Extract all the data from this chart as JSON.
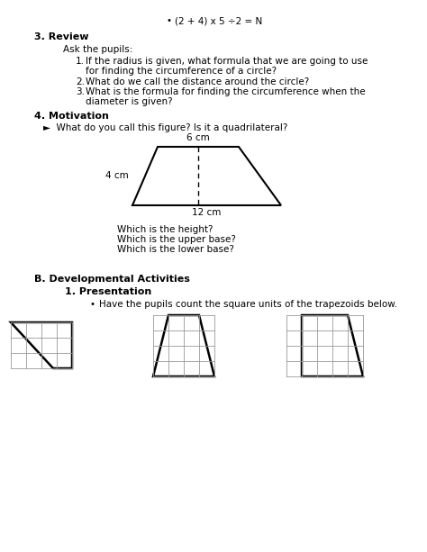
{
  "bullet_text": "(2 + 4) x 5 ÷2 = N",
  "section3_title": "3. Review",
  "ask_pupils": "Ask the pupils:",
  "review_items": [
    "If the radius is given, what formula that we are going to use",
    "for finding the circumference of a circle?",
    "What do we call the distance around the circle?",
    "What is the formula for finding the circumference when the",
    "diameter is given?"
  ],
  "section4_title": "4. Motivation",
  "motivation_question": "►  What do you call this figure? Is it a quadrilateral?",
  "trapezoid_labels": {
    "top": "6 cm",
    "left": "4 cm",
    "bottom": "12 cm"
  },
  "questions": [
    "Which is the height?",
    "Which is the upper base?",
    "Which is the lower base?"
  ],
  "sectionB_title": "B. Developmental Activities",
  "presentation_title": "1. Presentation",
  "bullet2_text": "Have the pupils count the square units of the trapezoids below.",
  "bg_color": "#ffffff",
  "text_color": "#000000",
  "grid_color": "#999999",
  "trap_color": "#000000"
}
